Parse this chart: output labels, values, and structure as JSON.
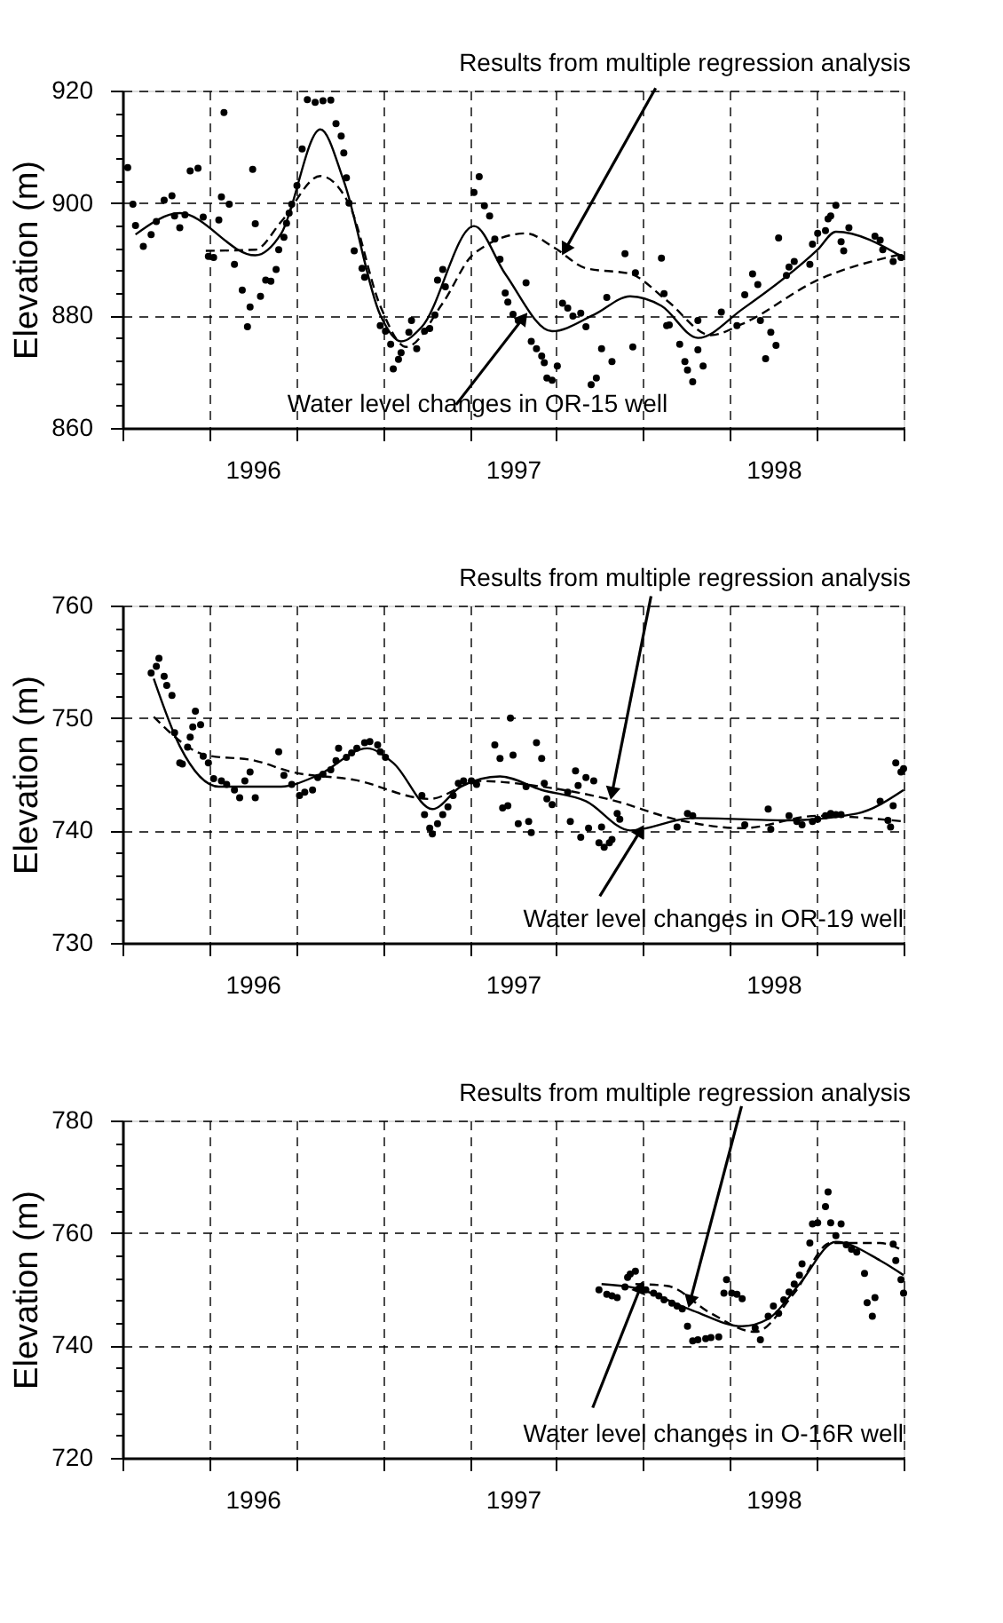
{
  "chart_data": [
    {
      "type": "scatter",
      "ylabel": "Elevation (m)",
      "xlim": [
        1996,
        1999
      ],
      "ylim": [
        860,
        920
      ],
      "grid": true,
      "legend": false,
      "xticks": [
        {
          "value": 1996,
          "label": null
        },
        {
          "value": 1996.333,
          "label": null
        },
        {
          "value": 1996.5,
          "label": "1996"
        },
        {
          "value": 1996.667,
          "label": null
        },
        {
          "value": 1997,
          "label": null
        },
        {
          "value": 1997.333,
          "label": null
        },
        {
          "value": 1997.5,
          "label": "1997"
        },
        {
          "value": 1997.667,
          "label": null
        },
        {
          "value": 1998,
          "label": null
        },
        {
          "value": 1998.333,
          "label": null
        },
        {
          "value": 1998.5,
          "label": "1998"
        },
        {
          "value": 1998.667,
          "label": null
        },
        {
          "value": 1999,
          "label": null
        }
      ],
      "yticks": [
        860,
        {
          "value": 864,
          "label": null
        },
        {
          "value": 868,
          "label": null
        },
        {
          "value": 872,
          "label": null
        },
        {
          "value": 876,
          "label": null
        },
        880,
        {
          "value": 884,
          "label": null
        },
        {
          "value": 888,
          "label": null
        },
        {
          "value": 892,
          "label": null
        },
        {
          "value": 896,
          "label": null
        },
        900,
        {
          "value": 904,
          "label": null
        },
        {
          "value": 908,
          "label": null
        },
        {
          "value": 912,
          "label": null
        },
        {
          "value": 916,
          "label": null
        },
        920
      ],
      "annotations": [
        {
          "text": "Results from multiple regression analysis",
          "x": 1997.7,
          "y": 891.7
        },
        {
          "text": "Water level changes in OR-15 well",
          "x": 1997.54,
          "y": 879.6
        }
      ],
      "series": [
        {
          "color": "#000000",
          "marker": "circle",
          "x": [
            1996.02,
            1996.04,
            1996.05,
            1996.08,
            1996.11,
            1996.13,
            1996.16,
            1996.19,
            1996.2,
            1996.22,
            1996.24,
            1996.26,
            1996.29,
            1996.31,
            1996.33,
            1996.35,
            1996.37,
            1996.38,
            1996.39,
            1996.41,
            1996.43,
            1996.46,
            1996.48,
            1996.49,
            1996.5,
            1996.51,
            1996.53,
            1996.55,
            1996.57,
            1996.59,
            1996.6,
            1996.62,
            1996.63,
            1996.64,
            1996.65,
            1996.67,
            1996.69,
            1996.71,
            1996.74,
            1996.77,
            1996.8,
            1996.82,
            1996.84,
            1996.85,
            1996.86,
            1996.87,
            1996.89,
            1996.92,
            1996.93,
            1996.99,
            1997.01,
            1997.03,
            1997.04,
            1997.06,
            1997.07,
            1997.1,
            1997.11,
            1997.13,
            1997.16,
            1997.18,
            1997.2,
            1997.21,
            1997.23,
            1997.24,
            1997.35,
            1997.37,
            1997.39,
            1997.41,
            1997.43,
            1997.45,
            1997.47,
            1997.48,
            1997.5,
            1997.52,
            1997.55,
            1997.57,
            1997.59,
            1997.61,
            1997.62,
            1997.63,
            1997.65,
            1997.67,
            1997.69,
            1997.71,
            1997.73,
            1997.76,
            1997.78,
            1997.8,
            1997.82,
            1997.84,
            1997.88,
            1997.86,
            1997.93,
            1997.96,
            1997.97,
            1998.07,
            1998.08,
            1998.09,
            1998.1,
            1998.14,
            1998.16,
            1998.17,
            1998.19,
            1998.21,
            1998.23,
            1998.21,
            1998.3,
            1998.36,
            1998.39,
            1998.42,
            1998.44,
            1998.45,
            1998.47,
            1998.49,
            1998.51,
            1998.52,
            1998.55,
            1998.56,
            1998.58,
            1998.64,
            1998.65,
            1998.67,
            1998.7,
            1998.71,
            1998.72,
            1998.74,
            1998.76,
            1998.77,
            1998.79,
            1998.89,
            1998.91,
            1998.92,
            1998.96,
            1998.99
          ],
          "values": [
            906.3,
            899.8,
            896.0,
            892.3,
            894.4,
            896.7,
            900.5,
            901.3,
            897.7,
            895.6,
            897.9,
            905.7,
            906.2,
            897.5,
            890.5,
            890.3,
            897.0,
            901.1,
            916.1,
            899.8,
            889.1,
            884.5,
            878.0,
            881.5,
            906.0,
            896.3,
            883.4,
            886.3,
            886.1,
            888.2,
            891.7,
            893.9,
            896.4,
            898.2,
            899.8,
            903.1,
            909.6,
            918.4,
            917.9,
            918.2,
            918.3,
            914.1,
            911.9,
            908.9,
            904.5,
            900.0,
            891.5,
            888.4,
            886.8,
            878.2,
            877.2,
            874.9,
            870.5,
            872.2,
            873.4,
            877.0,
            879.1,
            874.1,
            877.2,
            877.7,
            880.1,
            886.3,
            888.2,
            885.1,
            901.9,
            904.7,
            899.5,
            897.7,
            893.6,
            890.0,
            884.0,
            882.4,
            880.2,
            879.1,
            885.8,
            875.4,
            874.1,
            872.8,
            871.6,
            868.9,
            868.5,
            871.0,
            882.2,
            881.3,
            879.9,
            880.4,
            878.0,
            867.7,
            868.9,
            874.1,
            871.8,
            883.2,
            891.0,
            874.4,
            887.6,
            890.2,
            883.9,
            878.2,
            878.3,
            874.9,
            871.8,
            870.3,
            868.2,
            873.9,
            871.0,
            879.1,
            880.6,
            878.2,
            883.7,
            887.4,
            885.5,
            879.1,
            872.3,
            877.0,
            874.7,
            893.8,
            887.1,
            888.6,
            889.6,
            889.1,
            892.7,
            894.6,
            895.1,
            897.2,
            897.7,
            899.6,
            893.1,
            891.5,
            895.6,
            894.1,
            893.4,
            891.7,
            889.6,
            890.3
          ]
        },
        {
          "type": "line",
          "color": "#000000",
          "marker": "none",
          "line_style": "solid",
          "x": [
            1996.05,
            1996.22,
            1996.51,
            1996.61,
            1996.76,
            1996.85,
            1996.99,
            1997.07,
            1997.15,
            1997.35,
            1997.47,
            1997.65,
            1997.81,
            1997.95,
            1998.07,
            1998.21,
            1998.38,
            1998.67,
            1998.74,
            1999.0
          ],
          "values": [
            894.4,
            898.2,
            890.7,
            894.6,
            913.1,
            903.9,
            880.1,
            875.4,
            878.0,
            895.9,
            887.4,
            877.2,
            880.1,
            883.4,
            881.7,
            876.0,
            881.1,
            891.7,
            894.9,
            890.3
          ]
        },
        {
          "type": "line",
          "color": "#000000",
          "marker": "none",
          "line_style": "dashed",
          "x": [
            1996.32,
            1996.51,
            1996.61,
            1996.76,
            1996.87,
            1996.99,
            1997.09,
            1997.23,
            1997.35,
            1997.55,
            1997.66,
            1997.78,
            1997.95,
            1998.09,
            1998.26,
            1998.38,
            1998.67,
            1999.0
          ],
          "values": [
            891.5,
            891.7,
            896.7,
            904.8,
            899.8,
            881.7,
            874.4,
            882.2,
            891.0,
            894.6,
            892.0,
            888.4,
            887.4,
            882.7,
            876.5,
            878.5,
            886.3,
            891.0
          ]
        }
      ]
    },
    {
      "type": "scatter",
      "ylabel": "Elevation (m)",
      "xlim": [
        1996,
        1999
      ],
      "ylim": [
        730,
        760
      ],
      "grid": true,
      "legend": false,
      "xticks": [
        {
          "value": 1996,
          "label": null
        },
        {
          "value": 1996.333,
          "label": null
        },
        {
          "value": 1996.5,
          "label": "1996"
        },
        {
          "value": 1996.667,
          "label": null
        },
        {
          "value": 1997,
          "label": null
        },
        {
          "value": 1997.333,
          "label": null
        },
        {
          "value": 1997.5,
          "label": "1997"
        },
        {
          "value": 1997.667,
          "label": null
        },
        {
          "value": 1998,
          "label": null
        },
        {
          "value": 1998.333,
          "label": null
        },
        {
          "value": 1998.5,
          "label": "1998"
        },
        {
          "value": 1998.667,
          "label": null
        },
        {
          "value": 1999,
          "label": null
        }
      ],
      "yticks": [
        730,
        {
          "value": 732,
          "label": null
        },
        {
          "value": 734,
          "label": null
        },
        {
          "value": 736,
          "label": null
        },
        {
          "value": 738,
          "label": null
        },
        740,
        {
          "value": 742,
          "label": null
        },
        {
          "value": 744,
          "label": null
        },
        {
          "value": 746,
          "label": null
        },
        {
          "value": 748,
          "label": null
        },
        750,
        {
          "value": 752,
          "label": null
        },
        {
          "value": 754,
          "label": null
        },
        {
          "value": 756,
          "label": null
        },
        {
          "value": 758,
          "label": null
        },
        760
      ],
      "annotations": [
        {
          "text": "Results from multiple regression analysis",
          "x": 1997.88,
          "y": 743.3
        },
        {
          "text": "Water level changes in OR-19 well",
          "x": 1997.99,
          "y": 740.0
        }
      ],
      "series": [
        {
          "color": "#000000",
          "marker": "circle",
          "x": [
            1996.11,
            1996.13,
            1996.14,
            1996.16,
            1996.17,
            1996.19,
            1996.2,
            1996.22,
            1996.23,
            1996.25,
            1996.26,
            1996.27,
            1996.28,
            1996.3,
            1996.31,
            1996.33,
            1996.35,
            1996.38,
            1996.4,
            1996.43,
            1996.45,
            1996.47,
            1996.49,
            1996.51,
            1996.6,
            1996.62,
            1996.65,
            1996.68,
            1996.7,
            1996.73,
            1996.75,
            1996.77,
            1996.8,
            1996.82,
            1996.83,
            1996.86,
            1996.88,
            1996.9,
            1996.93,
            1996.95,
            1996.98,
            1996.99,
            1997.01,
            1997.15,
            1997.16,
            1997.18,
            1997.19,
            1997.21,
            1997.23,
            1997.25,
            1997.27,
            1997.29,
            1997.31,
            1997.34,
            1997.36,
            1997.43,
            1997.45,
            1997.46,
            1997.48,
            1997.49,
            1997.5,
            1997.52,
            1997.55,
            1997.56,
            1997.57,
            1997.59,
            1997.61,
            1997.62,
            1997.63,
            1997.65,
            1997.71,
            1997.72,
            1997.74,
            1997.75,
            1997.76,
            1997.78,
            1997.79,
            1997.81,
            1997.83,
            1997.84,
            1997.85,
            1997.87,
            1997.88,
            1997.9,
            1997.91,
            1998.13,
            1998.17,
            1998.19,
            1998.39,
            1998.48,
            1998.49,
            1998.56,
            1998.59,
            1998.61,
            1998.65,
            1998.67,
            1998.7,
            1998.72,
            1998.74,
            1998.76,
            1998.91,
            1998.94,
            1998.95,
            1998.96,
            1998.97,
            1998.99,
            1999.0
          ],
          "values": [
            754.0,
            754.6,
            755.3,
            753.7,
            752.9,
            752.0,
            748.7,
            746.0,
            745.9,
            747.4,
            748.3,
            749.2,
            750.6,
            749.4,
            746.6,
            746.0,
            744.6,
            744.4,
            744.1,
            743.6,
            742.9,
            744.4,
            745.2,
            742.9,
            747.0,
            744.9,
            744.1,
            743.1,
            743.4,
            743.6,
            744.7,
            745.0,
            745.4,
            746.2,
            747.3,
            746.5,
            746.9,
            747.3,
            747.8,
            747.9,
            747.6,
            747.0,
            746.5,
            743.1,
            741.4,
            740.2,
            739.7,
            740.6,
            741.4,
            742.1,
            743.1,
            744.2,
            744.4,
            744.4,
            744.1,
            747.6,
            746.4,
            742.0,
            742.2,
            750.0,
            746.7,
            740.6,
            743.9,
            740.8,
            739.8,
            747.8,
            746.4,
            744.2,
            742.8,
            742.3,
            743.4,
            740.8,
            745.3,
            744.0,
            739.4,
            744.7,
            740.2,
            744.4,
            738.9,
            740.3,
            738.5,
            738.9,
            739.2,
            741.5,
            741.0,
            740.3,
            741.5,
            741.3,
            740.5,
            741.9,
            740.1,
            741.3,
            740.8,
            740.5,
            740.8,
            741.0,
            741.3,
            741.5,
            741.4,
            741.4,
            742.6,
            740.9,
            740.3,
            742.2,
            746.0,
            745.2,
            745.5
          ]
        },
        {
          "type": "line",
          "color": "#000000",
          "marker": "none",
          "line_style": "solid",
          "x": [
            1996.12,
            1996.22,
            1996.37,
            1996.61,
            1996.75,
            1996.94,
            1997.04,
            1997.19,
            1997.3,
            1997.45,
            1997.61,
            1997.78,
            1997.95,
            1998.19,
            1998.55,
            1998.82,
            1999.0
          ],
          "values": [
            753.5,
            747.5,
            743.9,
            743.9,
            744.9,
            747.3,
            746.0,
            741.9,
            743.9,
            744.8,
            743.6,
            742.6,
            740.0,
            741.1,
            740.9,
            741.5,
            743.6
          ]
        },
        {
          "type": "line",
          "color": "#000000",
          "marker": "none",
          "line_style": "dashed",
          "x": [
            1996.12,
            1996.32,
            1996.51,
            1996.65,
            1996.89,
            1997.18,
            1997.37,
            1997.61,
            1997.88,
            1998.14,
            1998.38,
            1998.67,
            1999.0
          ],
          "values": [
            750.1,
            746.7,
            746.2,
            745.2,
            744.5,
            742.8,
            744.4,
            743.9,
            742.7,
            740.9,
            740.2,
            741.3,
            740.8
          ]
        }
      ]
    },
    {
      "type": "scatter",
      "ylabel": "Elevation (m)",
      "xlim": [
        1996,
        1999
      ],
      "ylim": [
        720,
        780
      ],
      "grid": true,
      "legend": false,
      "xticks": [
        {
          "value": 1996,
          "label": null
        },
        {
          "value": 1996.333,
          "label": null
        },
        {
          "value": 1996.5,
          "label": "1996"
        },
        {
          "value": 1996.667,
          "label": null
        },
        {
          "value": 1997,
          "label": null
        },
        {
          "value": 1997.333,
          "label": null
        },
        {
          "value": 1997.5,
          "label": "1997"
        },
        {
          "value": 1997.667,
          "label": null
        },
        {
          "value": 1998,
          "label": null
        },
        {
          "value": 1998.333,
          "label": null
        },
        {
          "value": 1998.5,
          "label": "1998"
        },
        {
          "value": 1998.667,
          "label": null
        },
        {
          "value": 1999,
          "label": null
        }
      ],
      "yticks": [
        720,
        {
          "value": 724,
          "label": null
        },
        {
          "value": 728,
          "label": null
        },
        {
          "value": 732,
          "label": null
        },
        {
          "value": 736,
          "label": null
        },
        740,
        {
          "value": 744,
          "label": null
        },
        {
          "value": 748,
          "label": null
        },
        {
          "value": 752,
          "label": null
        },
        {
          "value": 756,
          "label": null
        },
        760,
        {
          "value": 764,
          "label": null
        },
        {
          "value": 768,
          "label": null
        },
        {
          "value": 772,
          "label": null
        },
        {
          "value": 776,
          "label": null
        },
        780
      ],
      "annotations": [
        {
          "text": "Results from multiple regression analysis",
          "x": 1998.18,
          "y": 747.8
        },
        {
          "text": "Water level changes in O-16R well",
          "x": 1997.99,
          "y": 750.4
        }
      ],
      "series": [
        {
          "color": "#000000",
          "marker": "circle",
          "x": [
            1997.83,
            1997.86,
            1997.88,
            1997.9,
            1997.93,
            1997.94,
            1997.95,
            1997.97,
            1997.99,
            1998.01,
            1998.04,
            1998.06,
            1998.08,
            1998.11,
            1998.13,
            1998.15,
            1998.17,
            1998.19,
            1998.21,
            1998.24,
            1998.26,
            1998.29,
            1998.31,
            1998.32,
            1998.34,
            1998.36,
            1998.38,
            1998.43,
            1998.45,
            1998.48,
            1998.5,
            1998.52,
            1998.54,
            1998.56,
            1998.58,
            1998.6,
            1998.61,
            1998.64,
            1998.65,
            1998.67,
            1998.7,
            1998.71,
            1998.72,
            1998.74,
            1998.76,
            1998.78,
            1998.8,
            1998.82,
            1998.85,
            1998.86,
            1998.88,
            1998.89,
            1998.96,
            1998.97,
            1998.99,
            1999.0
          ],
          "values": [
            749.9,
            749.1,
            748.8,
            748.5,
            750.4,
            752.1,
            752.7,
            753.2,
            750.4,
            749.9,
            749.3,
            748.8,
            748.1,
            747.5,
            747.0,
            746.5,
            743.4,
            740.8,
            741.0,
            741.2,
            741.4,
            741.5,
            749.3,
            751.7,
            749.3,
            749.1,
            748.3,
            743.1,
            741.0,
            745.2,
            747.0,
            745.7,
            748.1,
            749.5,
            750.9,
            752.5,
            754.5,
            758.2,
            761.6,
            761.8,
            764.7,
            767.3,
            761.8,
            759.5,
            761.6,
            757.9,
            757.1,
            756.6,
            752.8,
            747.6,
            745.2,
            748.5,
            758.0,
            755.1,
            751.7,
            749.3
          ]
        },
        {
          "type": "line",
          "color": "#000000",
          "marker": "none",
          "line_style": "solid",
          "x": [
            1997.84,
            1997.97,
            1998.19,
            1998.38,
            1998.48,
            1998.6,
            1998.74,
            1998.91,
            1999.0
          ],
          "values": [
            750.9,
            750.2,
            746.2,
            743.4,
            744.7,
            750.9,
            758.4,
            755.1,
            752.5
          ]
        },
        {
          "type": "line",
          "color": "#000000",
          "marker": "none",
          "line_style": "dashed",
          "x": [
            1997.97,
            1998.09,
            1998.26,
            1998.43,
            1998.58,
            1998.72,
            1998.91,
            1999.0
          ],
          "values": [
            750.9,
            750.6,
            745.7,
            742.4,
            749.3,
            758.2,
            758.2,
            756.8
          ]
        }
      ]
    }
  ]
}
